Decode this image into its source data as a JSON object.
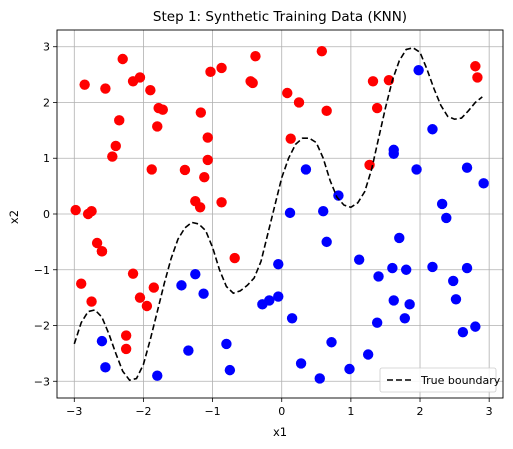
{
  "chart_data": {
    "type": "scatter",
    "title": "Step 1: Synthetic Training Data (KNN)",
    "xlabel": "x1",
    "ylabel": "x2",
    "xlim": [
      -3.25,
      3.2
    ],
    "ylim": [
      -3.3,
      3.3
    ],
    "xticks": [
      -3,
      -2,
      -1,
      0,
      1,
      2,
      3
    ],
    "yticks": [
      -3,
      -2,
      -1,
      0,
      1,
      2,
      3
    ],
    "grid": true,
    "legend_position": "lower-right",
    "colors": {
      "class_red": "#ff0000",
      "class_blue": "#0000ff",
      "boundary": "#000000",
      "grid": "#b0b0b0"
    },
    "series": [
      {
        "marker": "circle",
        "color": "#ff0000",
        "points": [
          [
            -2.98,
            0.07
          ],
          [
            -2.85,
            2.32
          ],
          [
            -2.8,
            0.0
          ],
          [
            -2.75,
            0.05
          ],
          [
            -2.67,
            -0.52
          ],
          [
            -2.6,
            -0.67
          ],
          [
            -2.55,
            2.25
          ],
          [
            -2.45,
            1.03
          ],
          [
            -2.4,
            1.22
          ],
          [
            -2.35,
            1.68
          ],
          [
            -2.3,
            2.78
          ],
          [
            -2.25,
            -2.18
          ],
          [
            -2.25,
            -2.42
          ],
          [
            -2.15,
            2.38
          ],
          [
            -2.15,
            -1.07
          ],
          [
            -2.05,
            2.45
          ],
          [
            -2.05,
            -1.5
          ],
          [
            -1.95,
            -1.65
          ],
          [
            -1.9,
            2.22
          ],
          [
            -1.88,
            0.8
          ],
          [
            -1.85,
            -1.32
          ],
          [
            -1.8,
            1.57
          ],
          [
            -1.78,
            1.9
          ],
          [
            -1.72,
            1.87
          ],
          [
            -1.4,
            0.79
          ],
          [
            -1.25,
            0.23
          ],
          [
            -1.18,
            0.12
          ],
          [
            -1.17,
            1.82
          ],
          [
            -1.12,
            0.66
          ],
          [
            -1.07,
            1.37
          ],
          [
            -1.07,
            0.97
          ],
          [
            -1.03,
            2.55
          ],
          [
            -0.87,
            2.62
          ],
          [
            -0.87,
            0.21
          ],
          [
            -0.68,
            -0.79
          ],
          [
            -0.45,
            2.38
          ],
          [
            -0.38,
            2.83
          ],
          [
            -0.42,
            2.35
          ],
          [
            0.08,
            2.17
          ],
          [
            0.13,
            1.35
          ],
          [
            0.25,
            2.0
          ],
          [
            0.58,
            2.92
          ],
          [
            0.65,
            1.85
          ],
          [
            1.27,
            0.88
          ],
          [
            1.32,
            2.38
          ],
          [
            1.38,
            1.9
          ],
          [
            1.55,
            2.4
          ],
          [
            2.8,
            2.65
          ],
          [
            2.83,
            2.45
          ],
          [
            -2.9,
            -1.25
          ],
          [
            -2.75,
            -1.57
          ],
          [
            -2.6,
            -0.67
          ]
        ]
      },
      {
        "marker": "circle",
        "color": "#0000ff",
        "points": [
          [
            -2.6,
            -2.28
          ],
          [
            -2.55,
            -2.75
          ],
          [
            -1.8,
            -2.9
          ],
          [
            -1.45,
            -1.28
          ],
          [
            -1.35,
            -2.45
          ],
          [
            -1.25,
            -1.08
          ],
          [
            -1.13,
            -1.43
          ],
          [
            -0.8,
            -2.33
          ],
          [
            -0.75,
            -2.8
          ],
          [
            -0.28,
            -1.62
          ],
          [
            -0.18,
            -1.55
          ],
          [
            -0.05,
            -0.9
          ],
          [
            -0.05,
            -1.48
          ],
          [
            0.12,
            0.02
          ],
          [
            0.15,
            -1.87
          ],
          [
            0.28,
            -2.68
          ],
          [
            0.35,
            0.8
          ],
          [
            0.55,
            -2.95
          ],
          [
            0.6,
            0.05
          ],
          [
            0.65,
            -0.5
          ],
          [
            0.72,
            -2.3
          ],
          [
            0.82,
            0.33
          ],
          [
            0.98,
            -2.78
          ],
          [
            1.12,
            -0.82
          ],
          [
            1.25,
            -2.52
          ],
          [
            1.38,
            -1.95
          ],
          [
            1.4,
            -1.12
          ],
          [
            1.6,
            -0.97
          ],
          [
            1.62,
            1.15
          ],
          [
            1.62,
            1.08
          ],
          [
            1.62,
            -1.55
          ],
          [
            1.7,
            -0.43
          ],
          [
            1.78,
            -1.87
          ],
          [
            1.8,
            -1.0
          ],
          [
            1.85,
            -1.62
          ],
          [
            1.95,
            0.8
          ],
          [
            1.98,
            2.58
          ],
          [
            2.18,
            1.52
          ],
          [
            2.18,
            -0.95
          ],
          [
            2.32,
            0.18
          ],
          [
            2.38,
            -0.07
          ],
          [
            2.48,
            -1.2
          ],
          [
            2.52,
            -1.53
          ],
          [
            2.62,
            -2.12
          ],
          [
            2.68,
            0.83
          ],
          [
            2.68,
            -0.97
          ],
          [
            2.8,
            -2.02
          ],
          [
            2.92,
            0.55
          ]
        ]
      },
      {
        "name": "True boundary",
        "type": "line",
        "style": "dashed",
        "color": "#000000",
        "x": [
          -3.0,
          -2.9,
          -2.8,
          -2.7,
          -2.6,
          -2.5,
          -2.4,
          -2.3,
          -2.2,
          -2.1,
          -2.0,
          -1.9,
          -1.8,
          -1.7,
          -1.6,
          -1.5,
          -1.4,
          -1.3,
          -1.2,
          -1.1,
          -1.0,
          -0.9,
          -0.8,
          -0.7,
          -0.6,
          -0.5,
          -0.4,
          -0.3,
          -0.2,
          -0.1,
          0.0,
          0.1,
          0.2,
          0.3,
          0.4,
          0.5,
          0.6,
          0.7,
          0.8,
          0.9,
          1.0,
          1.1,
          1.2,
          1.3,
          1.4,
          1.5,
          1.6,
          1.7,
          1.8,
          1.9,
          2.0,
          2.1,
          2.2,
          2.3,
          2.4,
          2.5,
          2.6,
          2.7,
          2.8,
          2.9
        ],
        "y": [
          -2.33,
          -1.95,
          -1.75,
          -1.72,
          -1.85,
          -2.15,
          -2.5,
          -2.82,
          -2.98,
          -2.95,
          -2.7,
          -2.25,
          -1.75,
          -1.25,
          -0.8,
          -0.45,
          -0.25,
          -0.15,
          -0.18,
          -0.3,
          -0.6,
          -1.0,
          -1.3,
          -1.42,
          -1.38,
          -1.28,
          -1.15,
          -0.85,
          -0.35,
          0.15,
          0.65,
          1.0,
          1.25,
          1.36,
          1.36,
          1.28,
          1.0,
          0.6,
          0.3,
          0.16,
          0.12,
          0.2,
          0.4,
          0.8,
          1.35,
          1.9,
          2.4,
          2.75,
          2.95,
          2.98,
          2.9,
          2.6,
          2.25,
          1.95,
          1.75,
          1.7,
          1.72,
          1.85,
          2.0,
          2.1
        ]
      }
    ]
  }
}
